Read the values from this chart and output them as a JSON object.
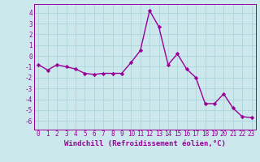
{
  "x": [
    0,
    1,
    2,
    3,
    4,
    5,
    6,
    7,
    8,
    9,
    10,
    11,
    12,
    13,
    14,
    15,
    16,
    17,
    18,
    19,
    20,
    21,
    22,
    23
  ],
  "y": [
    -0.8,
    -1.3,
    -0.8,
    -1.0,
    -1.2,
    -1.6,
    -1.7,
    -1.6,
    -1.6,
    -1.6,
    -0.6,
    0.5,
    4.2,
    2.7,
    -0.8,
    0.2,
    -1.2,
    -2.0,
    -4.4,
    -4.4,
    -3.5,
    -4.8,
    -5.6,
    -5.7
  ],
  "line_color": "#990099",
  "marker": "D",
  "markersize": 2.2,
  "linewidth": 1.0,
  "bg_color": "#cce8ec",
  "grid_color": "#b0d8dc",
  "xlabel": "Windchill (Refroidissement éolien,°C)",
  "xlabel_fontsize": 6.5,
  "xtick_labels": [
    "0",
    "1",
    "2",
    "3",
    "4",
    "5",
    "6",
    "7",
    "8",
    "9",
    "10",
    "11",
    "12",
    "13",
    "14",
    "15",
    "16",
    "17",
    "18",
    "19",
    "20",
    "21",
    "22",
    "23"
  ],
  "yticks": [
    -6,
    -5,
    -4,
    -3,
    -2,
    -1,
    0,
    1,
    2,
    3,
    4
  ],
  "ylim": [
    -6.8,
    4.8
  ],
  "xlim": [
    -0.5,
    23.5
  ],
  "tick_fontsize": 5.5
}
